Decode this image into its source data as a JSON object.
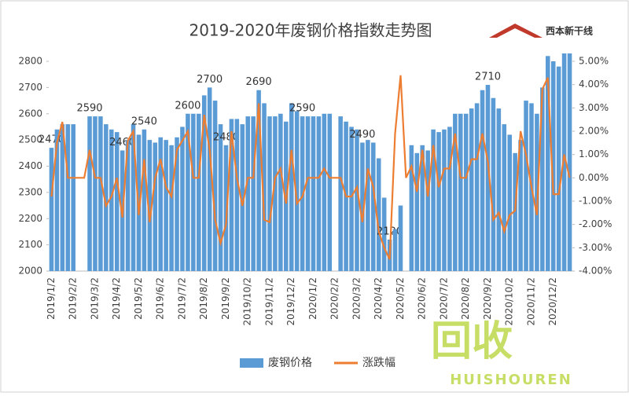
{
  "chart_data": {
    "type": "bar_line",
    "title": "2019-2020年废钢价格指数走势图",
    "logo": "西本新干线",
    "categories": [
      "2019/1/2",
      null,
      null,
      null,
      "2019/2/2",
      null,
      null,
      null,
      "2019/3/2",
      null,
      null,
      null,
      "2019/4/2",
      null,
      null,
      null,
      "2019/5/2",
      null,
      null,
      null,
      "2019/6/2",
      null,
      null,
      null,
      "2019/7/2",
      null,
      null,
      null,
      "2019/8/2",
      null,
      null,
      null,
      "2019/9/2",
      null,
      null,
      null,
      "2019/10/2",
      null,
      null,
      null,
      "2019/11/2",
      null,
      null,
      null,
      "2019/12/2",
      null,
      null,
      null,
      "2020/1/2",
      null,
      null,
      null,
      "2020/2/2",
      null,
      null,
      null,
      "2020/3/2",
      null,
      null,
      null,
      "2020/4/2",
      null,
      null,
      null,
      "2020/5/2",
      null,
      null,
      null,
      "2020/6/2",
      null,
      null,
      null,
      "2020/7/2",
      null,
      null,
      null,
      "2020/8/2",
      null,
      null,
      null,
      "2020/9/2",
      null,
      null,
      null,
      "2020/10/2",
      null,
      null,
      null,
      "2020/11/2",
      null,
      null,
      null,
      "2020/12/2",
      null,
      null,
      null
    ],
    "series": [
      {
        "name": "废钢价格",
        "color": "#5b9bd5",
        "type": "bar",
        "values": [
          2470,
          2540,
          2560,
          2560,
          2560,
          null,
          null,
          2590,
          2590,
          2590,
          2560,
          2540,
          2530,
          2460,
          2500,
          2560,
          2520,
          2540,
          2500,
          2490,
          2510,
          2500,
          2480,
          2510,
          2550,
          2600,
          2600,
          2600,
          2670,
          2700,
          2650,
          2560,
          2480,
          2580,
          2580,
          2560,
          2590,
          2590,
          2690,
          2640,
          2590,
          2590,
          2600,
          2570,
          2640,
          2610,
          2590,
          2590,
          2590,
          2590,
          2600,
          2600,
          null,
          2590,
          2570,
          2550,
          2540,
          2490,
          2500,
          2490,
          2430,
          2280,
          2120,
          2160,
          2250,
          null,
          2480,
          2450,
          2480,
          2460,
          2540,
          2530,
          2540,
          2550,
          2600,
          2600,
          2600,
          2620,
          2640,
          2690,
          2710,
          2660,
          2620,
          2560,
          2520,
          2450,
          2500,
          2650,
          2640,
          2600,
          2700,
          2820,
          2800,
          2780,
          2830,
          2830
        ],
        "value_labels": [
          "2470",
          null,
          null,
          null,
          null,
          null,
          null,
          "2590",
          null,
          null,
          null,
          null,
          null,
          "2460",
          null,
          null,
          null,
          "2540",
          null,
          null,
          null,
          null,
          null,
          null,
          null,
          "2600",
          null,
          null,
          null,
          "2700",
          null,
          null,
          "2480",
          null,
          null,
          null,
          null,
          null,
          "2690",
          null,
          null,
          null,
          null,
          null,
          null,
          null,
          "2590",
          null,
          null,
          null,
          null,
          null,
          null,
          null,
          null,
          null,
          null,
          "2490",
          null,
          null,
          null,
          null,
          "2120",
          null,
          null,
          null,
          null,
          null,
          null,
          null,
          null,
          null,
          null,
          null,
          null,
          null,
          null,
          null,
          null,
          null,
          "2710",
          null,
          null,
          null,
          null,
          null,
          null,
          null,
          null,
          null,
          null,
          null,
          null,
          null,
          null,
          null
        ]
      },
      {
        "name": "涨跌幅",
        "color": "#ed7d31",
        "type": "line",
        "axis": "y2",
        "values": [
          -0.8,
          1.5,
          2.4,
          0,
          0,
          0,
          0,
          1.2,
          0,
          0,
          -1.2,
          -0.8,
          0,
          -1.7,
          1.6,
          2.0,
          -1.6,
          0.8,
          -1.9,
          0,
          0.8,
          -0.4,
          -0.8,
          1.2,
          1.6,
          2.0,
          0,
          0,
          2.7,
          1.2,
          -1.8,
          -2.8,
          -2.0,
          2.0,
          0,
          -1.2,
          0,
          0,
          3.2,
          -1.8,
          -1.9,
          0,
          0.4,
          -1.1,
          1.2,
          -1.1,
          -0.8,
          0,
          0,
          0,
          0.4,
          0,
          0,
          0,
          -0.8,
          -0.8,
          -0.4,
          -1.9,
          0.4,
          -0.4,
          -2.3,
          -3.0,
          -3.5,
          1.9,
          4.4,
          0,
          0.5,
          -0.6,
          1.2,
          -0.8,
          1.4,
          -0.4,
          0.4,
          0.4,
          1.9,
          0,
          0,
          0.8,
          0.8,
          1.9,
          0.7,
          -1.8,
          -1.5,
          -2.3,
          -1.6,
          -1.4,
          2.0,
          1.0,
          -0.4,
          -1.6,
          3.8,
          4.3,
          -0.7,
          -0.7,
          1.0,
          0
        ]
      }
    ],
    "ylim": [
      2000,
      2800
    ],
    "yticks": [
      2000,
      2100,
      2200,
      2300,
      2400,
      2500,
      2600,
      2700,
      2800
    ],
    "y2lim": [
      -4,
      5
    ],
    "y2ticks": [
      {
        "value": -4,
        "label": "-4.00%"
      },
      {
        "value": -3,
        "label": "-3.00%"
      },
      {
        "value": -2,
        "label": "-2.00%"
      },
      {
        "value": -1,
        "label": "-1.00%"
      },
      {
        "value": 0,
        "label": "0.00%"
      },
      {
        "value": 1,
        "label": "1.00%"
      },
      {
        "value": 2,
        "label": "2.00%"
      },
      {
        "value": 3,
        "label": "3.00%"
      },
      {
        "value": 4,
        "label": "4.00%"
      },
      {
        "value": 5,
        "label": "5.00%"
      }
    ],
    "grid": false,
    "legend": "bottom"
  },
  "watermark": {
    "big": "回收",
    "small": "HUISHOUREN"
  }
}
